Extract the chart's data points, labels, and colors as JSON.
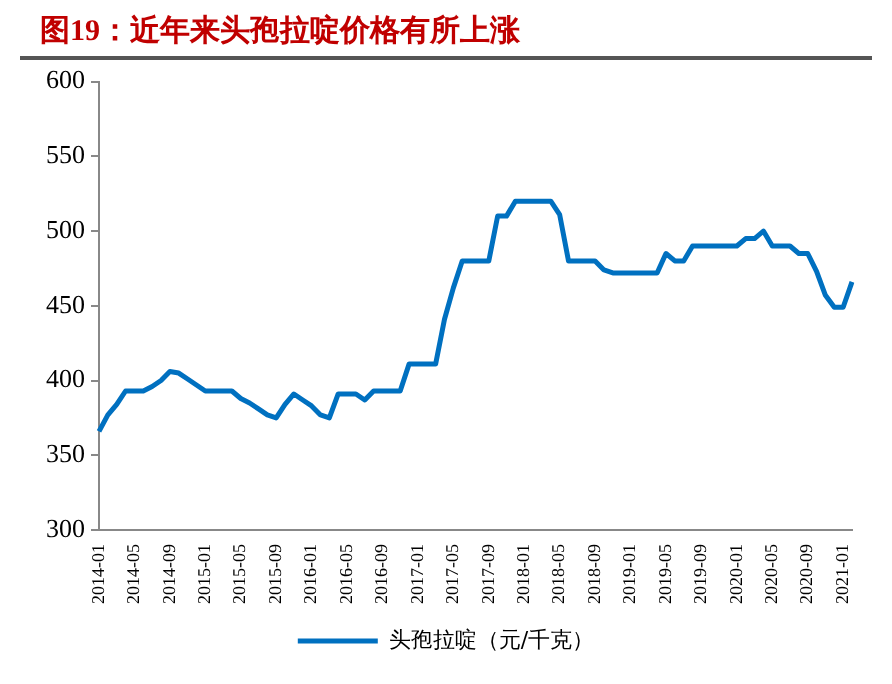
{
  "chart_data": {
    "type": "line",
    "title": "图19：近年来头孢拉啶价格有所上涨",
    "categories": [
      "2014-01",
      null,
      null,
      null,
      "2014-05",
      null,
      null,
      null,
      "2014-09",
      null,
      null,
      null,
      "2015-01",
      null,
      null,
      null,
      "2015-05",
      null,
      null,
      null,
      "2015-09",
      null,
      null,
      null,
      "2016-01",
      null,
      null,
      null,
      "2016-05",
      null,
      null,
      null,
      "2016-09",
      null,
      null,
      null,
      "2017-01",
      null,
      null,
      null,
      "2017-05",
      null,
      null,
      null,
      "2017-09",
      null,
      null,
      null,
      "2018-01",
      null,
      null,
      null,
      "2018-05",
      null,
      null,
      null,
      "2018-09",
      null,
      null,
      null,
      "2019-01",
      null,
      null,
      null,
      "2019-05",
      null,
      null,
      null,
      "2019-09",
      null,
      null,
      null,
      "2020-01",
      null,
      null,
      null,
      "2020-05",
      null,
      null,
      null,
      "2020-09",
      null,
      null,
      null,
      "2021-01",
      null
    ],
    "series": [
      {
        "name": "头孢拉啶（元/千克）",
        "color": "#0070c0",
        "values": [
          366,
          377,
          384,
          393,
          393,
          393,
          396,
          400,
          406,
          405,
          401,
          397,
          393,
          393,
          393,
          393,
          388,
          385,
          381,
          377,
          375,
          384,
          391,
          387,
          383,
          377,
          375,
          391,
          391,
          391,
          387,
          393,
          393,
          393,
          393,
          411,
          411,
          411,
          411,
          441,
          462,
          480,
          480,
          480,
          480,
          510,
          510,
          520,
          520,
          520,
          520,
          520,
          511,
          480,
          480,
          480,
          480,
          474,
          472,
          472,
          472,
          472,
          472,
          472,
          485,
          480,
          480,
          490,
          490,
          490,
          490,
          490,
          490,
          495,
          495,
          500,
          490,
          490,
          490,
          485,
          485,
          473,
          457,
          449,
          449,
          466
        ]
      }
    ],
    "ylim": [
      300,
      600
    ],
    "yticks": [
      300,
      350,
      400,
      450,
      500,
      550,
      600
    ],
    "grid": false,
    "legend": "bottom",
    "marker": "none",
    "line_style": "solid"
  }
}
